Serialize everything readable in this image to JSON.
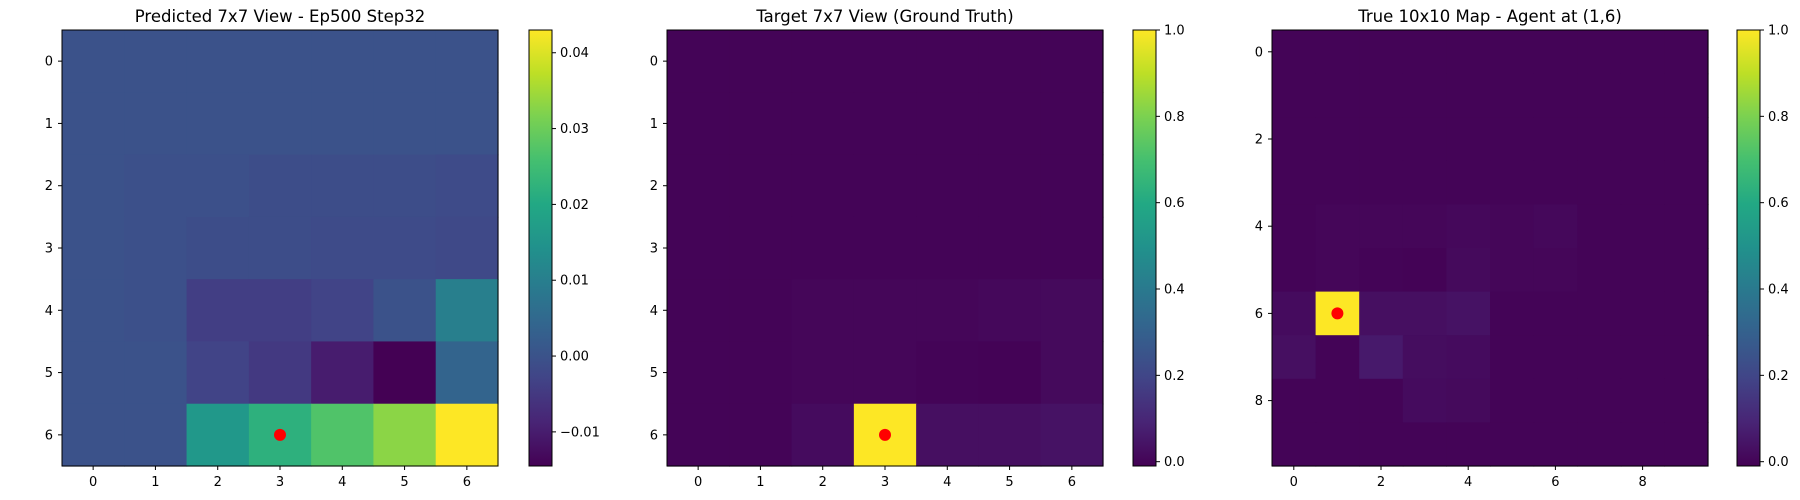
{
  "chart_data": [
    {
      "type": "heatmap",
      "title": "Predicted 7x7 View - Ep500 Step32",
      "xticks": [
        "0",
        "1",
        "2",
        "3",
        "4",
        "5",
        "6"
      ],
      "yticks": [
        "0",
        "1",
        "2",
        "3",
        "4",
        "5",
        "6"
      ],
      "vmin": -0.0145,
      "vmax": 0.043,
      "colorbar_ticks": [
        {
          "value": -0.01,
          "label": "−0.01"
        },
        {
          "value": 0.0,
          "label": "0.00"
        },
        {
          "value": 0.01,
          "label": "0.01"
        },
        {
          "value": 0.02,
          "label": "0.02"
        },
        {
          "value": 0.03,
          "label": "0.03"
        },
        {
          "value": 0.04,
          "label": "0.04"
        }
      ],
      "values": [
        [
          0.0,
          0.0,
          0.0,
          0.0,
          0.0,
          0.0,
          0.0
        ],
        [
          0.0,
          0.0,
          0.0,
          0.0,
          0.0,
          0.0,
          0.0
        ],
        [
          0.0,
          -0.0005,
          -0.0005,
          -0.001,
          -0.001,
          -0.001,
          -0.0015
        ],
        [
          0.0,
          -0.0005,
          -0.001,
          -0.001,
          -0.0015,
          -0.0015,
          -0.002
        ],
        [
          0.0,
          -0.0005,
          -0.004,
          -0.004,
          -0.003,
          0.0,
          0.01
        ],
        [
          0.0,
          0.0,
          -0.003,
          -0.005,
          -0.01,
          -0.0145,
          0.004
        ],
        [
          0.0,
          0.0,
          0.016,
          0.022,
          0.027,
          0.033,
          0.043
        ]
      ],
      "markers": [
        {
          "x": 3,
          "y": 6,
          "color": "#ff0000"
        }
      ]
    },
    {
      "type": "heatmap",
      "title": "Target 7x7 View (Ground Truth)",
      "xticks": [
        "0",
        "1",
        "2",
        "3",
        "4",
        "5",
        "6"
      ],
      "yticks": [
        "0",
        "1",
        "2",
        "3",
        "4",
        "5",
        "6"
      ],
      "vmin": -0.01,
      "vmax": 1.0,
      "colorbar_ticks": [
        {
          "value": 0.0,
          "label": "0.0"
        },
        {
          "value": 0.2,
          "label": "0.2"
        },
        {
          "value": 0.4,
          "label": "0.4"
        },
        {
          "value": 0.6,
          "label": "0.6"
        },
        {
          "value": 0.8,
          "label": "0.8"
        },
        {
          "value": 1.0,
          "label": "1.0"
        }
      ],
      "values": [
        [
          0.0,
          0.0,
          0.0,
          0.0,
          0.0,
          0.0,
          0.0
        ],
        [
          0.0,
          0.0,
          0.0,
          0.0,
          0.0,
          0.0,
          0.0
        ],
        [
          0.0,
          0.0,
          0.0,
          0.0,
          0.0,
          0.0,
          0.0
        ],
        [
          0.0,
          0.0,
          0.0,
          0.0,
          0.0,
          0.0,
          0.0
        ],
        [
          0.0,
          0.0,
          0.005,
          0.005,
          0.005,
          0.01,
          0.015
        ],
        [
          0.0,
          0.0,
          0.005,
          0.005,
          0.0,
          -0.005,
          0.015
        ],
        [
          0.0,
          0.0,
          0.02,
          1.0,
          0.03,
          0.03,
          0.04
        ]
      ],
      "markers": [
        {
          "x": 3,
          "y": 6,
          "color": "#ff0000"
        }
      ]
    },
    {
      "type": "heatmap",
      "title": "True 10x10 Map - Agent at (1,6)",
      "xticks": [
        {
          "value": 0,
          "label": "0"
        },
        {
          "value": 2,
          "label": "2"
        },
        {
          "value": 4,
          "label": "4"
        },
        {
          "value": 6,
          "label": "6"
        },
        {
          "value": 8,
          "label": "8"
        }
      ],
      "yticks": [
        {
          "value": 0,
          "label": "0"
        },
        {
          "value": 2,
          "label": "2"
        },
        {
          "value": 4,
          "label": "4"
        },
        {
          "value": 6,
          "label": "6"
        },
        {
          "value": 8,
          "label": "8"
        }
      ],
      "vmin": -0.01,
      "vmax": 1.0,
      "colorbar_ticks": [
        {
          "value": 0.0,
          "label": "0.0"
        },
        {
          "value": 0.2,
          "label": "0.2"
        },
        {
          "value": 0.4,
          "label": "0.4"
        },
        {
          "value": 0.6,
          "label": "0.6"
        },
        {
          "value": 0.8,
          "label": "0.8"
        },
        {
          "value": 1.0,
          "label": "1.0"
        }
      ],
      "values": [
        [
          0.0,
          0.0,
          0.0,
          0.0,
          0.0,
          0.0,
          0.0,
          0.0,
          0.0,
          0.0
        ],
        [
          0.0,
          0.0,
          0.0,
          0.0,
          0.0,
          0.0,
          0.0,
          0.0,
          0.0,
          0.0
        ],
        [
          0.0,
          0.0,
          0.0,
          0.0,
          0.0,
          0.0,
          0.0,
          0.0,
          0.0,
          0.0
        ],
        [
          0.0,
          0.0,
          0.0,
          0.0,
          0.0,
          0.0,
          0.0,
          0.0,
          0.0,
          0.0
        ],
        [
          0.0,
          0.005,
          0.005,
          0.005,
          0.01,
          0.005,
          0.01,
          0.0,
          0.0,
          0.0
        ],
        [
          0.0,
          0.005,
          0.0,
          -0.005,
          0.015,
          0.005,
          0.005,
          0.0,
          0.0,
          0.0
        ],
        [
          0.02,
          1.0,
          0.03,
          0.03,
          0.04,
          0.0,
          0.0,
          0.0,
          0.0,
          0.0
        ],
        [
          0.03,
          0.0,
          0.06,
          0.025,
          0.02,
          0.0,
          0.0,
          0.0,
          0.0,
          0.0
        ],
        [
          0.0,
          0.0,
          0.0,
          0.02,
          0.015,
          0.0,
          0.0,
          0.0,
          0.0,
          0.0
        ],
        [
          0.0,
          0.0,
          0.0,
          0.0,
          0.0,
          0.0,
          0.0,
          0.0,
          0.0,
          0.0
        ]
      ],
      "markers": [
        {
          "x": 1,
          "y": 6,
          "color": "#ff0000"
        }
      ]
    }
  ]
}
